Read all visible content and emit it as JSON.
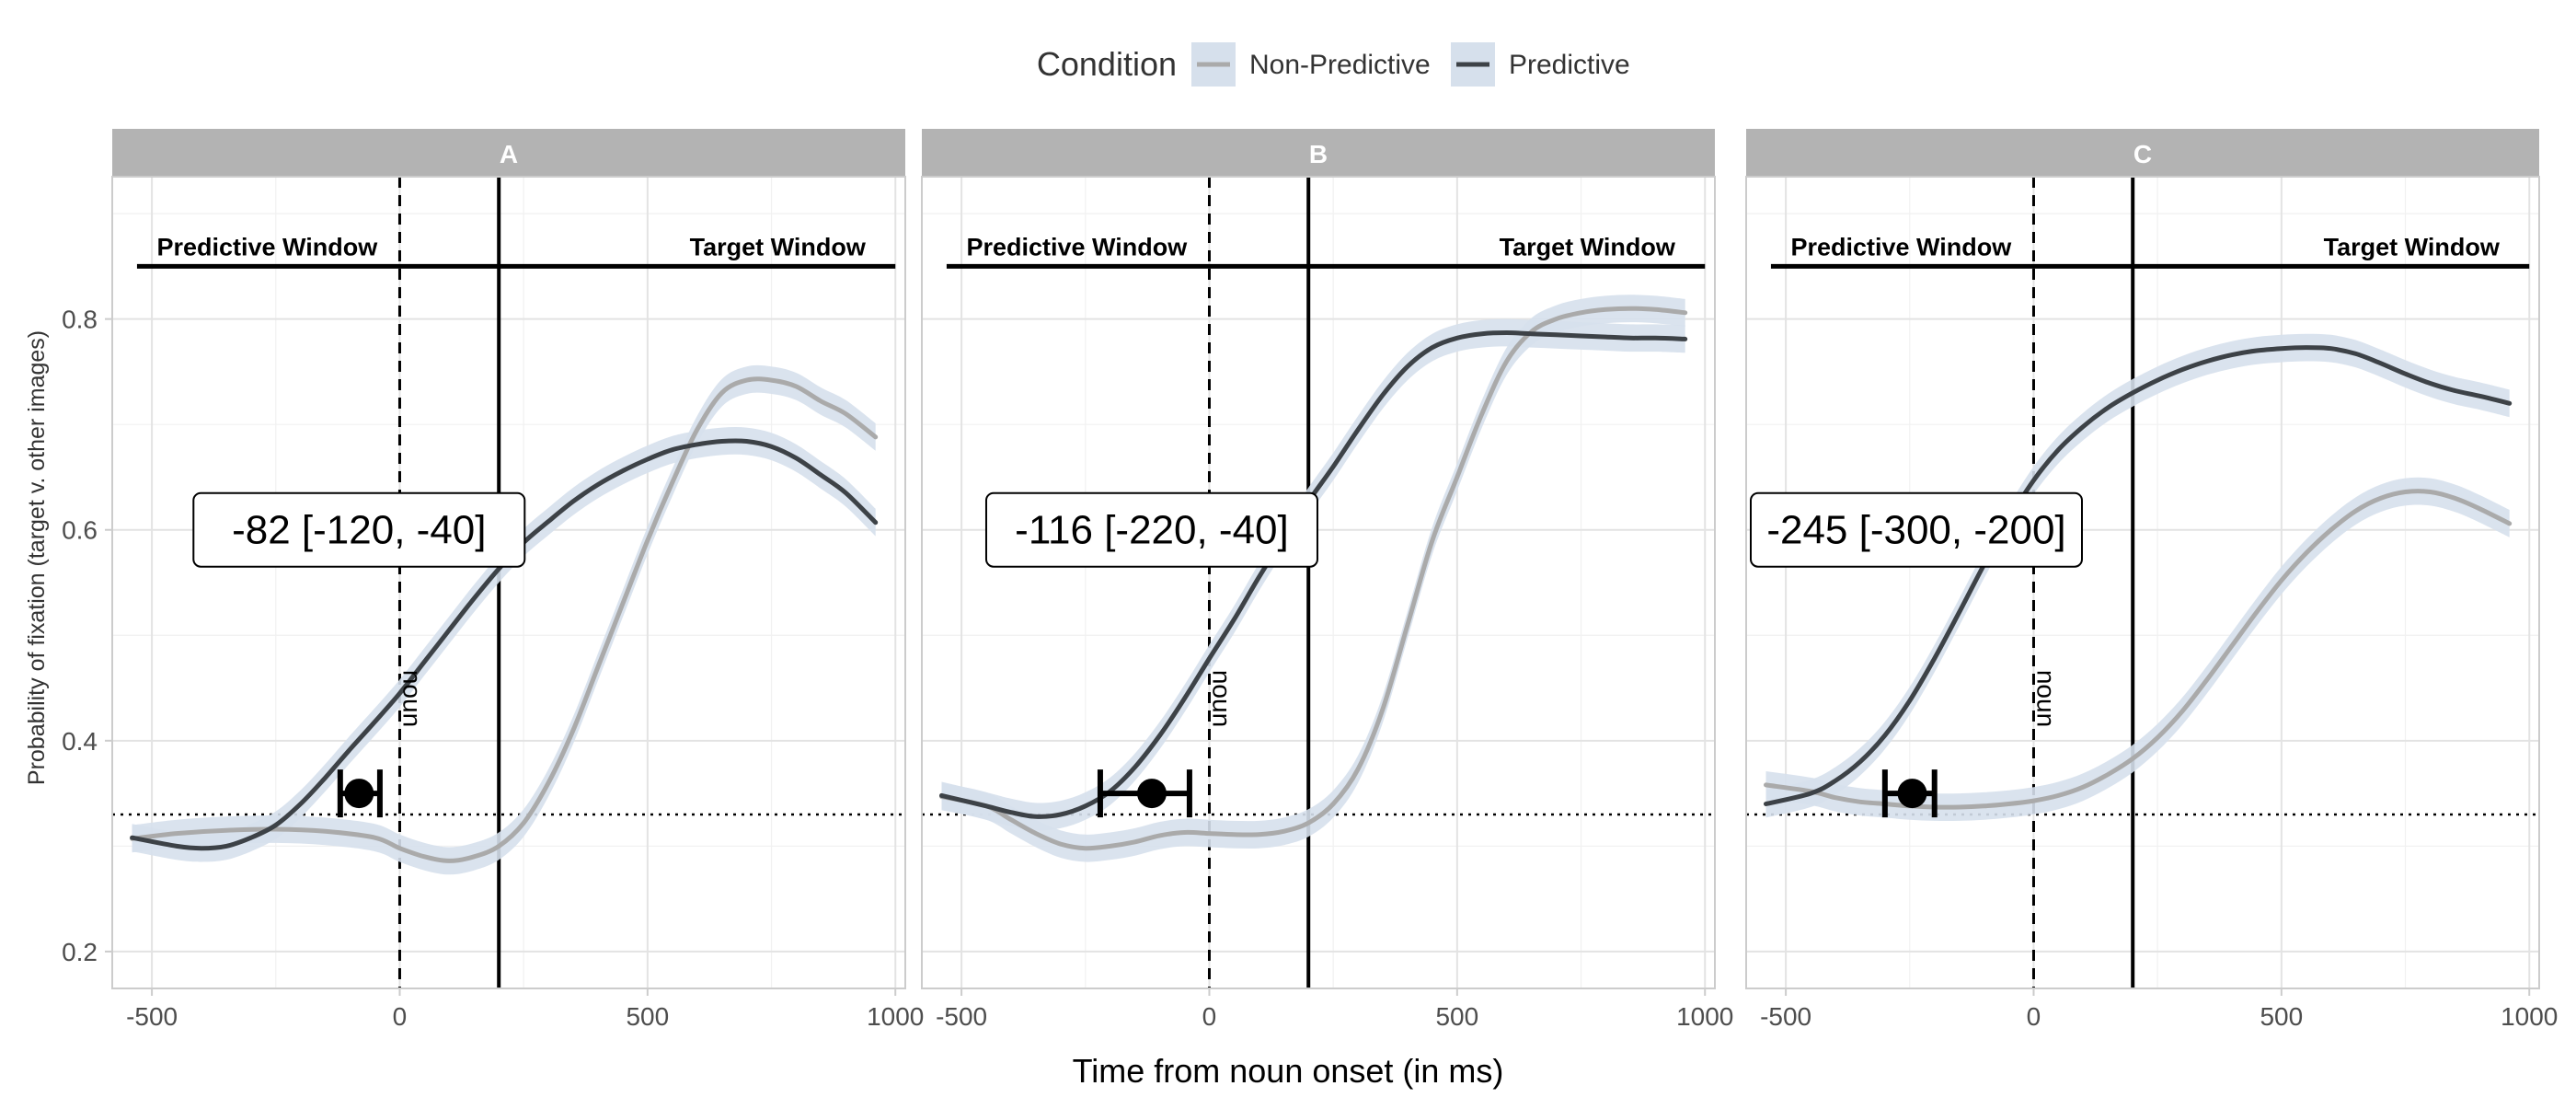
{
  "legend": {
    "title": "Condition",
    "items": [
      {
        "label": "Non-Predictive",
        "color": "#aaaaaa"
      },
      {
        "label": "Predictive",
        "color": "#3d4247"
      }
    ],
    "placement": "top",
    "ribbon_color": "#d6e0ec"
  },
  "axes": {
    "xlabel": "Time from noun onset (in ms)",
    "ylabel": "Probability of fixation (target v. other images)",
    "xlim": [
      -580,
      1020
    ],
    "ylim": [
      0.165,
      0.935
    ],
    "xticks": [
      -500,
      0,
      500,
      1000
    ],
    "yticks": [
      0.2,
      0.4,
      0.6,
      0.8
    ],
    "grid": true
  },
  "reference_lines": {
    "noun_onset": 0,
    "target_window_start": 200,
    "chance_level": 0.33,
    "window_bar_y": 0.85,
    "noun_label": "noun",
    "predictive_window_label": "Predictive Window",
    "target_window_label": "Target Window"
  },
  "chart_data": [
    {
      "type": "line",
      "panel": "A",
      "title": "A",
      "xlabel": "Time from noun onset (in ms)",
      "ylabel": "Probability of fixation (target v. other images)",
      "series": [
        {
          "name": "Non-Predictive",
          "x": [
            -540,
            -450,
            -350,
            -250,
            -150,
            -50,
            0,
            50,
            100,
            150,
            200,
            250,
            300,
            350,
            400,
            450,
            500,
            550,
            600,
            650,
            700,
            750,
            800,
            850,
            900,
            960
          ],
          "y": [
            0.307,
            0.312,
            0.315,
            0.316,
            0.314,
            0.308,
            0.298,
            0.29,
            0.286,
            0.29,
            0.3,
            0.322,
            0.36,
            0.41,
            0.47,
            0.53,
            0.59,
            0.645,
            0.695,
            0.73,
            0.742,
            0.742,
            0.736,
            0.722,
            0.71,
            0.688
          ]
        },
        {
          "name": "Predictive",
          "x": [
            -540,
            -450,
            -400,
            -350,
            -300,
            -250,
            -200,
            -150,
            -100,
            -50,
            0,
            50,
            100,
            150,
            200,
            250,
            300,
            350,
            400,
            450,
            500,
            550,
            600,
            650,
            700,
            750,
            800,
            850,
            900,
            960
          ],
          "y": [
            0.308,
            0.3,
            0.298,
            0.3,
            0.308,
            0.32,
            0.34,
            0.365,
            0.392,
            0.418,
            0.445,
            0.475,
            0.505,
            0.535,
            0.563,
            0.588,
            0.608,
            0.627,
            0.643,
            0.656,
            0.667,
            0.676,
            0.681,
            0.684,
            0.684,
            0.679,
            0.668,
            0.652,
            0.635,
            0.607
          ]
        }
      ],
      "estimate": {
        "label": "-82 [-120, -40]",
        "point": -82,
        "ci": [
          -120,
          -40
        ],
        "y": 0.35
      }
    },
    {
      "type": "line",
      "panel": "B",
      "title": "B",
      "xlabel": "Time from noun onset (in ms)",
      "ylabel": "Probability of fixation (target v. other images)",
      "series": [
        {
          "name": "Non-Predictive",
          "x": [
            -540,
            -450,
            -400,
            -350,
            -300,
            -250,
            -200,
            -150,
            -100,
            -50,
            0,
            50,
            100,
            150,
            200,
            250,
            300,
            350,
            400,
            450,
            500,
            550,
            600,
            650,
            700,
            750,
            800,
            850,
            900,
            960
          ],
          "y": [
            0.347,
            0.338,
            0.325,
            0.312,
            0.302,
            0.298,
            0.3,
            0.304,
            0.31,
            0.313,
            0.312,
            0.311,
            0.311,
            0.314,
            0.322,
            0.34,
            0.373,
            0.43,
            0.51,
            0.59,
            0.65,
            0.71,
            0.76,
            0.788,
            0.8,
            0.806,
            0.809,
            0.81,
            0.809,
            0.806
          ]
        },
        {
          "name": "Predictive",
          "x": [
            -540,
            -450,
            -400,
            -350,
            -300,
            -250,
            -200,
            -150,
            -100,
            -50,
            0,
            50,
            100,
            150,
            200,
            250,
            300,
            350,
            400,
            450,
            500,
            550,
            600,
            650,
            700,
            750,
            800,
            850,
            900,
            960
          ],
          "y": [
            0.348,
            0.338,
            0.332,
            0.328,
            0.33,
            0.338,
            0.352,
            0.375,
            0.405,
            0.44,
            0.478,
            0.515,
            0.555,
            0.592,
            0.627,
            0.66,
            0.695,
            0.728,
            0.755,
            0.773,
            0.782,
            0.786,
            0.787,
            0.786,
            0.785,
            0.784,
            0.783,
            0.782,
            0.782,
            0.781
          ]
        }
      ],
      "estimate": {
        "label": "-116 [-220, -40]",
        "point": -116,
        "ci": [
          -220,
          -40
        ],
        "y": 0.35
      }
    },
    {
      "type": "line",
      "panel": "C",
      "title": "C",
      "xlabel": "Time from noun onset (in ms)",
      "ylabel": "Probability of fixation (target v. other images)",
      "series": [
        {
          "name": "Non-Predictive",
          "x": [
            -540,
            -450,
            -400,
            -350,
            -300,
            -250,
            -200,
            -150,
            -100,
            -50,
            0,
            50,
            100,
            150,
            200,
            250,
            300,
            350,
            400,
            450,
            500,
            550,
            600,
            650,
            700,
            750,
            800,
            850,
            900,
            960
          ],
          "y": [
            0.358,
            0.352,
            0.346,
            0.342,
            0.34,
            0.338,
            0.337,
            0.337,
            0.338,
            0.34,
            0.343,
            0.348,
            0.356,
            0.368,
            0.383,
            0.403,
            0.428,
            0.458,
            0.49,
            0.522,
            0.552,
            0.578,
            0.6,
            0.618,
            0.63,
            0.636,
            0.636,
            0.63,
            0.62,
            0.606
          ]
        },
        {
          "name": "Predictive",
          "x": [
            -540,
            -450,
            -400,
            -350,
            -300,
            -250,
            -200,
            -150,
            -100,
            -50,
            0,
            50,
            100,
            150,
            200,
            250,
            300,
            350,
            400,
            450,
            500,
            550,
            600,
            650,
            700,
            750,
            800,
            850,
            900,
            960
          ],
          "y": [
            0.34,
            0.35,
            0.362,
            0.38,
            0.405,
            0.438,
            0.478,
            0.522,
            0.567,
            0.61,
            0.647,
            0.676,
            0.698,
            0.716,
            0.73,
            0.742,
            0.752,
            0.76,
            0.766,
            0.77,
            0.772,
            0.773,
            0.772,
            0.767,
            0.758,
            0.748,
            0.739,
            0.732,
            0.727,
            0.72
          ]
        }
      ],
      "estimate": {
        "label": "-245 [-300, -200]",
        "point": -245,
        "ci": [
          -300,
          -200
        ],
        "y": 0.35
      }
    }
  ]
}
